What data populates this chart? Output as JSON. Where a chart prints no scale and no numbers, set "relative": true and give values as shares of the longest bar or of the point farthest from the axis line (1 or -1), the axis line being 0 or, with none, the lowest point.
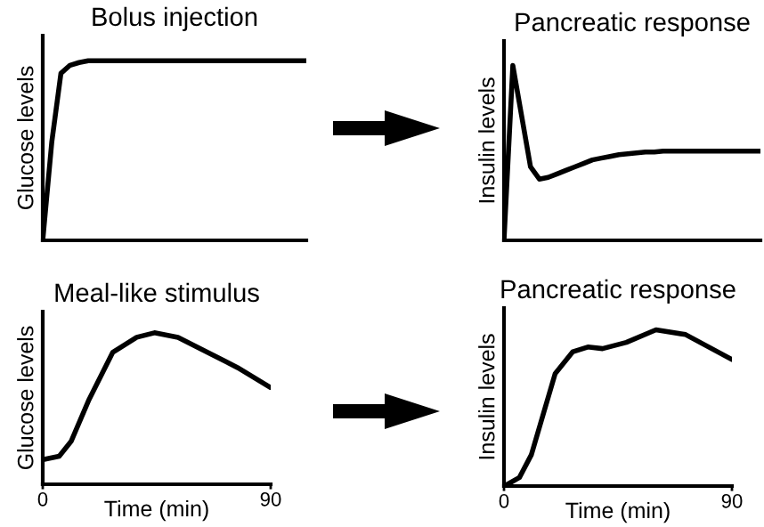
{
  "chart_data": [
    {
      "type": "line",
      "title": "Bolus injection",
      "ylabel": "Glucose levels",
      "relative": true,
      "tick_labels": false,
      "color": "#000000",
      "categories": [
        null,
        null,
        null,
        null,
        null,
        null,
        null,
        null,
        null,
        null,
        null,
        null,
        null,
        null,
        null,
        null,
        null,
        null,
        null,
        null,
        null,
        null,
        null,
        null,
        null,
        null,
        null,
        null,
        null,
        null
      ],
      "values": [
        0,
        0.55,
        0.93,
        0.975,
        0.99,
        1,
        1,
        1,
        1,
        1,
        1,
        1,
        1,
        1,
        1,
        1,
        1,
        1,
        1,
        1,
        1,
        1,
        1,
        1,
        1,
        1,
        1,
        1,
        1,
        1
      ]
    },
    {
      "type": "line",
      "title": "Pancreatic response",
      "ylabel": "Insulin levels",
      "relative": true,
      "tick_labels": false,
      "color": "#000000",
      "categories": [
        null,
        null,
        null,
        null,
        null,
        null,
        null,
        null,
        null,
        null,
        null,
        null,
        null,
        null,
        null,
        null,
        null,
        null,
        null,
        null,
        null,
        null,
        null,
        null,
        null,
        null,
        null,
        null,
        null,
        null
      ],
      "values": [
        0,
        1,
        0.71,
        0.42,
        0.35,
        0.36,
        0.38,
        0.4,
        0.42,
        0.44,
        0.46,
        0.47,
        0.48,
        0.49,
        0.495,
        0.5,
        0.505,
        0.505,
        0.51,
        0.51,
        0.51,
        0.51,
        0.51,
        0.51,
        0.51,
        0.51,
        0.51,
        0.51,
        0.51,
        0.51
      ]
    },
    {
      "type": "line",
      "title": "Meal-like stimulus",
      "ylabel": "Glucose levels",
      "xlabel": "Time (min)",
      "relative": true,
      "tick_labels": "x",
      "xlim": [
        0,
        90
      ],
      "xticks": [
        0,
        90
      ],
      "color": "#000000",
      "x": [
        0.6,
        6.5,
        11.2,
        18.3,
        27.6,
        37.1,
        44.1,
        53.4,
        65.2,
        76.9,
        89.8
      ],
      "values": [
        0.165,
        0.185,
        0.283,
        0.56,
        0.87,
        0.97,
        1,
        0.97,
        0.87,
        0.77,
        0.64
      ]
    },
    {
      "type": "line",
      "title": "Pancreatic response",
      "ylabel": "Insulin levels",
      "xlabel": "Time (min)",
      "relative": true,
      "tick_labels": "x",
      "xlim": [
        0,
        90
      ],
      "xticks": [
        0,
        90
      ],
      "color": "#000000",
      "x": [
        0.2,
        6.1,
        10.8,
        15.5,
        20.2,
        27.2,
        33.1,
        38.9,
        48.3,
        60.0,
        71.7,
        90
      ],
      "values": [
        0,
        0.055,
        0.2,
        0.46,
        0.72,
        0.86,
        0.89,
        0.88,
        0.92,
        1,
        0.97,
        0.81
      ]
    }
  ]
}
